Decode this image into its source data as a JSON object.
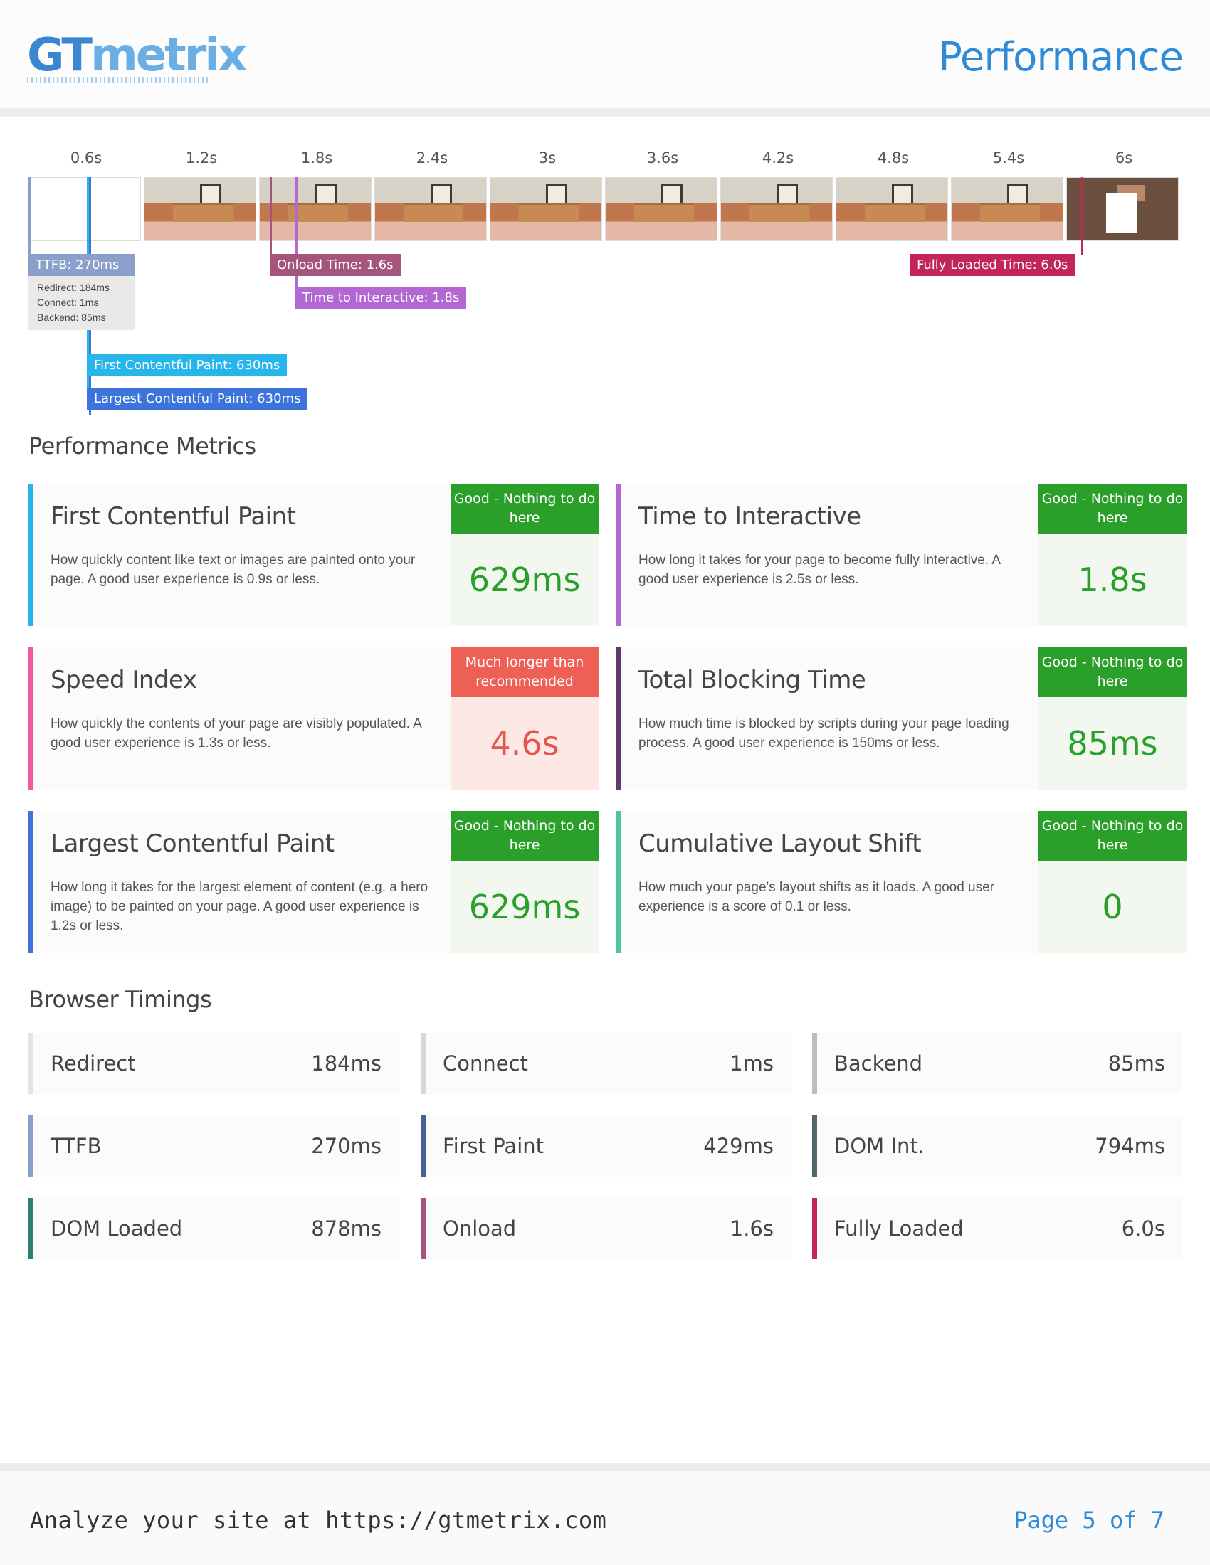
{
  "header": {
    "logo_gt": "GT",
    "logo_metrix": "metrix",
    "title": "Performance"
  },
  "timeline": {
    "ticks": [
      "0.6s",
      "1.2s",
      "1.8s",
      "2.4s",
      "3s",
      "3.6s",
      "4.2s",
      "4.8s",
      "5.4s",
      "6s"
    ],
    "markers": {
      "ttfb": "TTFB: 270ms",
      "onload": "Onload Time: 1.6s",
      "tti": "Time to Interactive: 1.8s",
      "fully_loaded": "Fully Loaded Time: 6.0s",
      "fcp": "First Contentful Paint: 630ms",
      "lcp": "Largest Contentful Paint: 630ms"
    },
    "ttfb_breakdown": [
      "Redirect: 184ms",
      "Connect: 1ms",
      "Backend: 85ms"
    ],
    "colors": {
      "ttfb": "#8b9fcb",
      "onload": "#a5547e",
      "tti": "#b267d2",
      "fully_loaded": "#c2255c",
      "fcp": "#26b6ec",
      "lcp": "#3c74dc"
    }
  },
  "metrics_section": {
    "title": "Performance Metrics",
    "cards": [
      {
        "name": "First Contentful Paint",
        "desc": "How quickly content like text or images are painted onto your page. A good user experience is 0.9s or less.",
        "badge": "Good - Nothing to do here",
        "value": "629ms",
        "status": "good",
        "accent": "#26b6ec"
      },
      {
        "name": "Time to Interactive",
        "desc": "How long it takes for your page to become fully interactive. A good user experience is 2.5s or less.",
        "badge": "Good - Nothing to do here",
        "value": "1.8s",
        "status": "good",
        "accent": "#b267d2"
      },
      {
        "name": "Speed Index",
        "desc": "How quickly the contents of your page are visibly populated. A good user experience is 1.3s or less.",
        "badge": "Much longer than recommended",
        "value": "4.6s",
        "status": "bad",
        "accent": "#ef5aa0"
      },
      {
        "name": "Total Blocking Time",
        "desc": "How much time is blocked by scripts during your page loading process. A good user experience is 150ms or less.",
        "badge": "Good - Nothing to do here",
        "value": "85ms",
        "status": "good",
        "accent": "#5e3a6e"
      },
      {
        "name": "Largest Contentful Paint",
        "desc": "How long it takes for the largest element of content (e.g. a hero image) to be painted on your page. A good user experience is 1.2s or less.",
        "badge": "Good - Nothing to do here",
        "value": "629ms",
        "status": "good",
        "accent": "#3c74dc"
      },
      {
        "name": "Cumulative Layout Shift",
        "desc": "How much your page's layout shifts as it loads. A good user experience is a score of 0.1 or less.",
        "badge": "Good - Nothing to do here",
        "value": "0",
        "status": "good",
        "accent": "#4fc3a1"
      }
    ]
  },
  "timings_section": {
    "title": "Browser Timings",
    "items": [
      {
        "name": "Redirect",
        "value": "184ms",
        "accent": "#e4e4e4"
      },
      {
        "name": "Connect",
        "value": "1ms",
        "accent": "#d7d7d7"
      },
      {
        "name": "Backend",
        "value": "85ms",
        "accent": "#bdbdbd"
      },
      {
        "name": "TTFB",
        "value": "270ms",
        "accent": "#8b9fcb"
      },
      {
        "name": "First Paint",
        "value": "429ms",
        "accent": "#4a5f95"
      },
      {
        "name": "DOM Int.",
        "value": "794ms",
        "accent": "#52696b"
      },
      {
        "name": "DOM Loaded",
        "value": "878ms",
        "accent": "#2f7f73"
      },
      {
        "name": "Onload",
        "value": "1.6s",
        "accent": "#a5547e"
      },
      {
        "name": "Fully Loaded",
        "value": "6.0s",
        "accent": "#c2255c"
      }
    ]
  },
  "footer": {
    "analyze": "Analyze your site at https://gtmetrix.com",
    "page": "Page 5 of 7"
  }
}
